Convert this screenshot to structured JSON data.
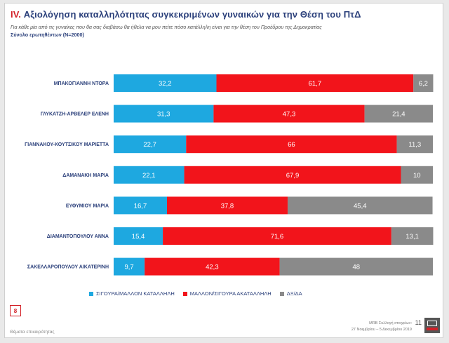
{
  "header": {
    "number": "IV.",
    "title": "Αξιολόγηση καταλληλότητας συγκεκριμένων γυναικών για την Θέση του ΠτΔ",
    "subtitle": "Για κάθε μία από τις γυναίκες που θα σας διαβάσω θα ήθελα να μου πείτε πόσο κατάλληλη είναι για την θέση του Προέδρου της Δημοκρατίας",
    "sample": "Σύνολο ερωτηθέντων (Ν=2000)"
  },
  "colors": {
    "suitable": "#1ea8e0",
    "unsuitable": "#f2141b",
    "dk": "#8a8a8a"
  },
  "chart_data": {
    "type": "bar",
    "orientation": "horizontal",
    "stacked": true,
    "categories": [
      "ΜΠΑΚΟΓΙΑΝΝΗ ΝΤΟΡΑ",
      "ΓΛΥΚΑΤΖΗ-ΑΡΒΕΛΕΡ ΕΛΕΝΗ",
      "ΓΙΑΝΝΑΚΟΥ-ΚΟΥΤΣΙΚΟΥ ΜΑΡΙΕΤΤΑ",
      "ΔΑΜΑΝΑΚΗ ΜΑΡΙΑ",
      "ΕΥΘΥΜΙΟΥ ΜΑΡΙΑ",
      "ΔΙΑΜΑΝΤΟΠΟΥΛΟΥ ΑΝΝΑ",
      "ΣΑΚΕΛΛΑΡΟΠΟΥΛΟΥ ΑΙΚΑΤΕΡΙΝΗ"
    ],
    "series": [
      {
        "name": "ΣΙΓΟΥΡΑ/ΜΑΛΛΟΝ ΚΑΤΑΛΛΗΛΗ",
        "values": [
          32.2,
          31.3,
          22.7,
          22.1,
          16.7,
          15.4,
          9.7
        ],
        "labels": [
          "32,2",
          "31,3",
          "22,7",
          "22,1",
          "16,7",
          "15,4",
          "9,7"
        ]
      },
      {
        "name": "ΜΑΛΛΟΝ/ΣΙΓΟΥΡΑ ΑΚΑΤΑΛΛΗΛΗ",
        "values": [
          61.7,
          47.3,
          66,
          67.9,
          37.8,
          71.6,
          42.3
        ],
        "labels": [
          "61,7",
          "47,3",
          "66",
          "67,9",
          "37,8",
          "71,6",
          "42,3"
        ]
      },
      {
        "name": "ΔΞ/ΔΑ",
        "values": [
          6.2,
          21.4,
          11.3,
          10,
          45.4,
          13.1,
          48
        ],
        "labels": [
          "6,2",
          "21,4",
          "11,3",
          "10",
          "45,4",
          "13,1",
          "48"
        ]
      }
    ],
    "xlim": [
      0,
      100
    ],
    "legend_position": "bottom",
    "grid": false
  },
  "footer": {
    "page_badge": "8",
    "topic": "Θέματα επικαιρότητας",
    "client": "MRB Συλλογή στοιχείων:",
    "dates": "27 Νοεμβρίου – 5 Δεκεμβρίου 2019",
    "page_number": "11"
  }
}
